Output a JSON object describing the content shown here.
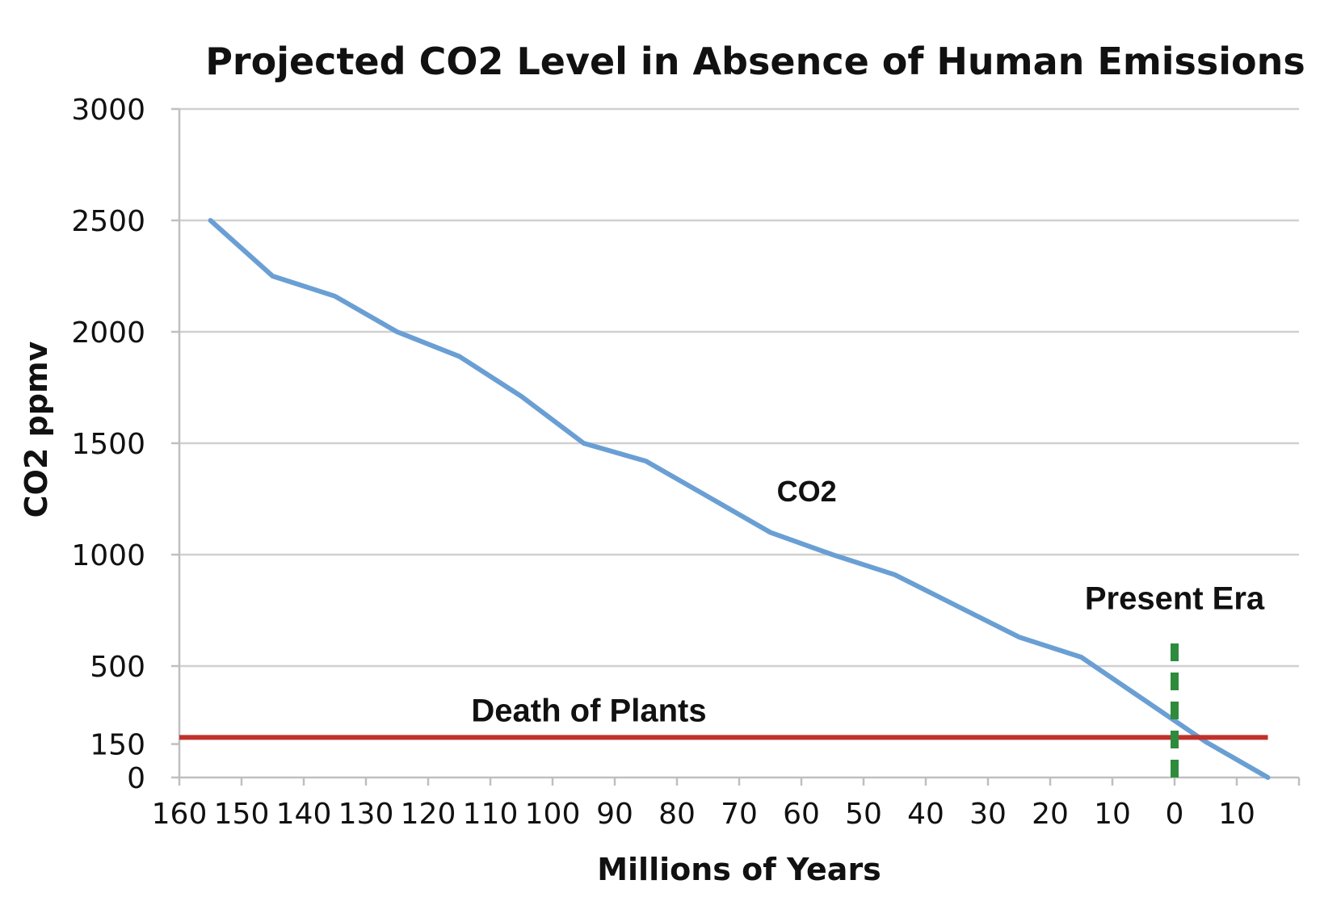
{
  "chart_data": {
    "type": "line",
    "title": "Projected CO2 Level in Absence of Human Emissions",
    "xlabel": "Millions of Years",
    "ylabel": "CO2 ppmv",
    "xlim": [
      160,
      -20
    ],
    "ylim": [
      0,
      3000
    ],
    "x_tick_values": [
      160,
      150,
      140,
      130,
      120,
      110,
      100,
      90,
      80,
      70,
      60,
      50,
      40,
      30,
      20,
      10,
      0,
      -10
    ],
    "x_tick_labels": [
      "160",
      "150",
      "140",
      "130",
      "120",
      "110",
      "100",
      "90",
      "80",
      "70",
      "60",
      "50",
      "40",
      "30",
      "20",
      "10",
      "0",
      "10"
    ],
    "y_ticks": [
      0,
      150,
      500,
      1000,
      1500,
      2000,
      2500,
      3000
    ],
    "y_gridlines": [
      500,
      1000,
      1500,
      2000,
      2500,
      3000
    ],
    "grid": true,
    "series": [
      {
        "name": "CO2",
        "color": "#6a9fd4",
        "x": [
          155,
          145,
          135,
          125,
          115,
          105,
          95,
          85,
          75,
          65,
          55,
          45,
          35,
          25,
          15,
          5,
          -5,
          -15
        ],
        "y": [
          2500,
          2250,
          2160,
          2000,
          1890,
          1710,
          1500,
          1420,
          1260,
          1100,
          1000,
          910,
          770,
          630,
          540,
          350,
          160,
          0
        ]
      }
    ],
    "annotations": [
      {
        "type": "hline",
        "label": "Death of Plants",
        "y": 180,
        "x_start": 160,
        "x_end": -15,
        "color": "#c0312b"
      },
      {
        "type": "vline",
        "label": "Present Era",
        "x": 0,
        "y_start": 0,
        "y_end": 640,
        "color": "#2e8b3c",
        "dashed": true
      }
    ],
    "axis_color": "#bfbfbf",
    "grid_color": "#d0d0d0"
  }
}
